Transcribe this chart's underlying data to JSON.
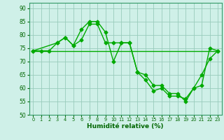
{
  "xlabel": "Humidité relative (%)",
  "xlim": [
    -0.5,
    23.5
  ],
  "ylim": [
    50,
    92
  ],
  "xticks": [
    0,
    1,
    2,
    3,
    4,
    5,
    6,
    7,
    8,
    9,
    10,
    11,
    12,
    13,
    14,
    15,
    16,
    17,
    18,
    19,
    20,
    21,
    22,
    23
  ],
  "yticks": [
    50,
    55,
    60,
    65,
    70,
    75,
    80,
    85,
    90
  ],
  "bg_color": "#cff0e8",
  "grid_color": "#99ccbb",
  "line_color": "#00aa00",
  "line1_x": [
    0,
    1,
    2,
    3,
    4,
    5,
    6,
    7,
    8,
    9,
    10,
    11,
    12,
    13,
    14,
    15,
    16,
    17,
    18,
    19,
    20,
    21,
    22,
    23
  ],
  "line1_y": [
    74,
    74,
    74,
    77,
    79,
    76,
    82,
    85,
    85,
    81,
    70,
    77,
    77,
    66,
    63,
    59,
    60,
    57,
    57,
    56,
    60,
    65,
    71,
    74
  ],
  "line2_x": [
    0,
    3,
    4,
    5,
    6,
    7,
    8,
    9,
    10,
    11,
    12,
    13,
    14,
    15,
    16,
    17,
    18,
    19,
    20,
    21,
    22,
    23
  ],
  "line2_y": [
    74,
    77,
    79,
    76,
    78,
    84,
    84,
    77,
    77,
    77,
    77,
    66,
    65,
    61,
    61,
    58,
    58,
    55,
    60,
    61,
    75,
    74
  ],
  "line3_x": [
    0,
    23
  ],
  "line3_y": [
    74,
    74
  ],
  "markersize": 2.5,
  "linewidth": 1.0
}
